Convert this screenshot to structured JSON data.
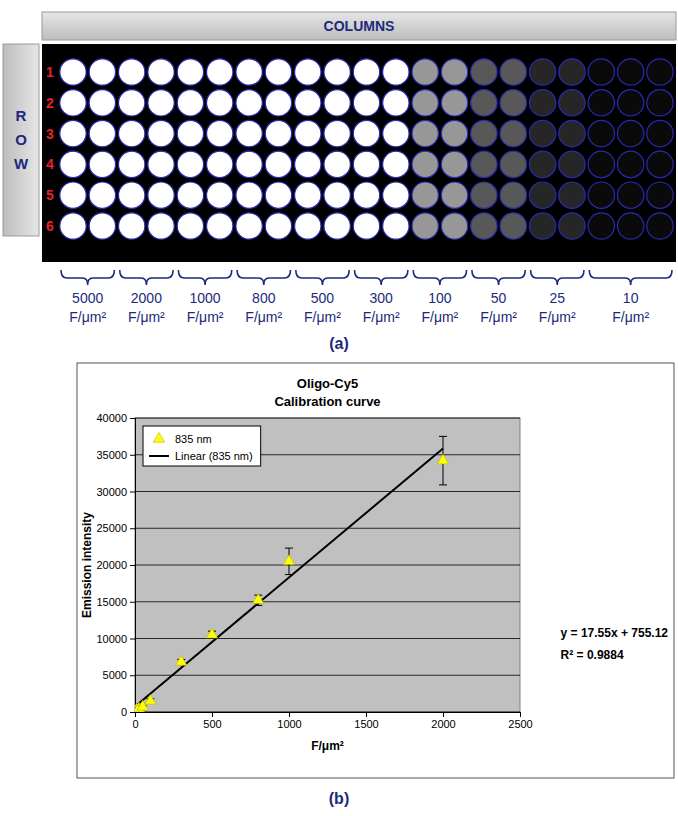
{
  "panel_labels": [
    "(a)",
    "(b)"
  ],
  "wells": {
    "header": "COLUMNS",
    "side_label": "ROW",
    "rows": [
      "1",
      "2",
      "3",
      "4",
      "5",
      "6"
    ],
    "groups": [
      {
        "concentration": 5000,
        "unit": "F/μm²",
        "wells": 2
      },
      {
        "concentration": 2000,
        "unit": "F/μm²",
        "wells": 2
      },
      {
        "concentration": 1000,
        "unit": "F/μm²",
        "wells": 2
      },
      {
        "concentration": 800,
        "unit": "F/μm²",
        "wells": 2
      },
      {
        "concentration": 500,
        "unit": "F/μm²",
        "wells": 2
      },
      {
        "concentration": 300,
        "unit": "F/μm²",
        "wells": 2
      },
      {
        "concentration": 100,
        "unit": "F/μm²",
        "wells": 2
      },
      {
        "concentration": 50,
        "unit": "F/μm²",
        "wells": 2
      },
      {
        "concentration": 25,
        "unit": "F/μm²",
        "wells": 2
      },
      {
        "concentration": 10,
        "unit": "F/μm²",
        "wells": 3
      }
    ]
  },
  "chart_data": {
    "type": "scatter",
    "title": "Oligo-Cy5",
    "subtitle": "Calibration curve",
    "x_label": "F/μm²",
    "y_label": "Emission intensity",
    "xlim": [
      0,
      2500
    ],
    "xticks": [
      0,
      500,
      1000,
      1500,
      2000,
      2500
    ],
    "ylim": [
      0,
      40000
    ],
    "yticks": [
      0,
      5000,
      10000,
      15000,
      20000,
      25000,
      30000,
      35000,
      40000
    ],
    "grid": "y",
    "legend": "upper left",
    "series": [
      {
        "name": "835 nm",
        "type": "scatter",
        "color": "#ffff00",
        "marker": "triangle",
        "x": [
          10,
          25,
          50,
          100,
          300,
          500,
          800,
          1000,
          2000
        ],
        "values": [
          300,
          450,
          700,
          1500,
          6800,
          10500,
          15200,
          20500,
          34200
        ],
        "errors": [
          150,
          150,
          150,
          300,
          350,
          500,
          700,
          1800,
          3300
        ]
      },
      {
        "name": "Linear (835 nm)",
        "type": "line",
        "color": "#000000",
        "line_style": "solid",
        "x": [
          0,
          2000
        ],
        "values": [
          755,
          35855
        ]
      }
    ],
    "annotations": [
      "y = 17.55x + 755.12",
      "R² = 0.9884"
    ]
  }
}
